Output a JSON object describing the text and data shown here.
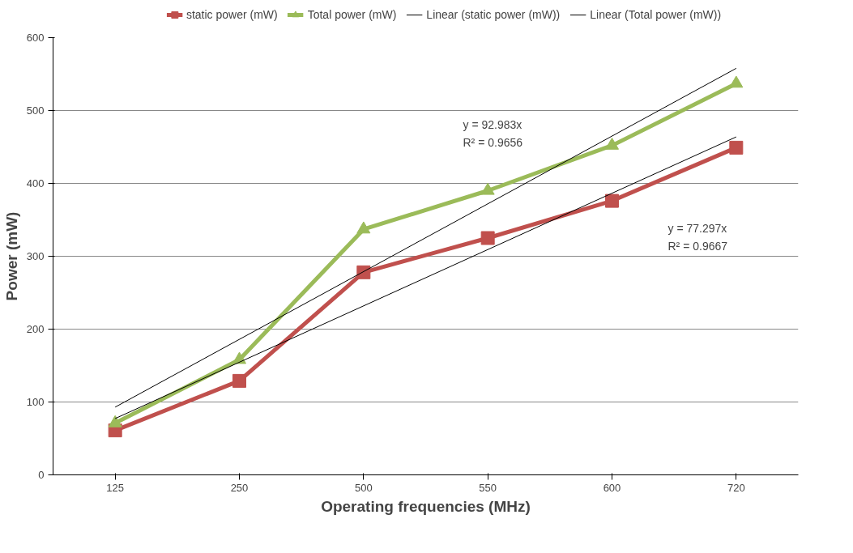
{
  "chart_data": {
    "type": "line",
    "xlabel": "Operating frequencies (MHz)",
    "ylabel": "Power (mW)",
    "categories": [
      "125",
      "250",
      "500",
      "550",
      "600",
      "720"
    ],
    "ylim": [
      0,
      600
    ],
    "yticks": [
      0,
      100,
      200,
      300,
      400,
      500,
      600
    ],
    "grid": "y",
    "legend": "top",
    "series": [
      {
        "name": "static power (mW)",
        "color": "#c0504d",
        "marker": "square",
        "values": [
          61,
          129,
          278,
          325,
          376,
          449
        ]
      },
      {
        "name": "Total power (mW)",
        "color": "#9bbb59",
        "marker": "triangle",
        "values": [
          71,
          158,
          337,
          390,
          452,
          537
        ]
      },
      {
        "name": "Linear (static power (mW))",
        "color": "#000000",
        "marker": "none",
        "x": [
          "125",
          "720"
        ],
        "values": [
          77.297,
          463.782
        ]
      },
      {
        "name": "Linear (Total power (mW))",
        "color": "#000000",
        "marker": "none",
        "x": [
          "125",
          "720"
        ],
        "values": [
          92.983,
          557.898
        ]
      }
    ],
    "annotations": [
      "y = 92.983x\nR² = 0.9656",
      "y = 77.297x\nR² = 0.9667"
    ]
  }
}
